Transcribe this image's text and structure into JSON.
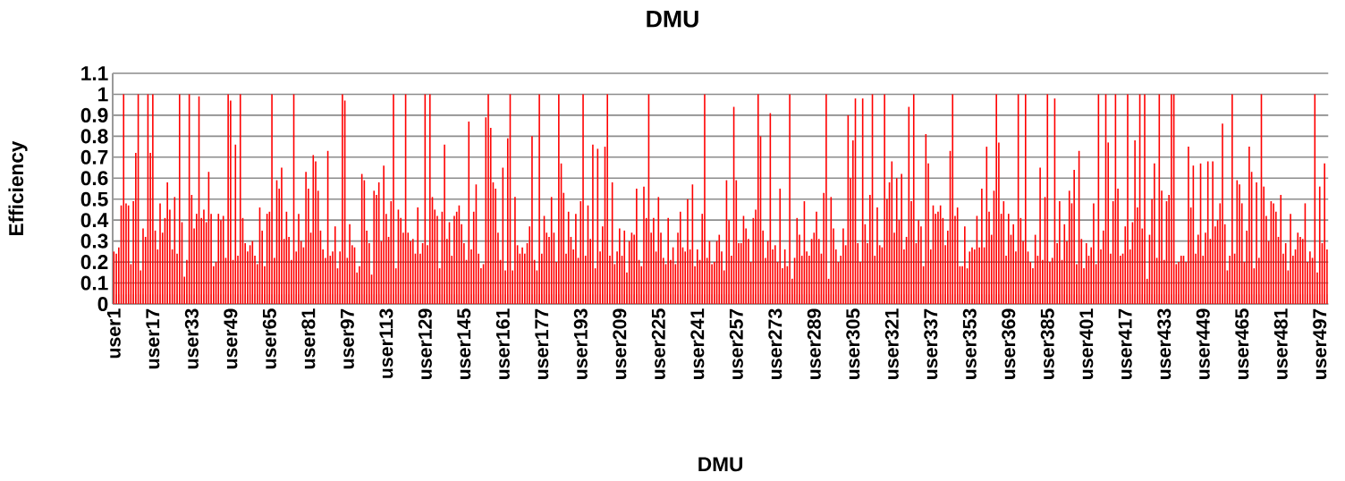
{
  "chart_data": {
    "type": "bar",
    "title": "DMU",
    "xlabel": "DMU",
    "ylabel": "Efficiency",
    "color": "#ff0000",
    "grid": "y",
    "ylim": [
      0,
      1.1
    ],
    "yticks": [
      0,
      0.1,
      0.2,
      0.3,
      0.4,
      0.5,
      0.6,
      0.7,
      0.8,
      0.9,
      1,
      1.1
    ],
    "categories": [
      "user1",
      null,
      null,
      null,
      null,
      null,
      null,
      null,
      null,
      null,
      null,
      null,
      null,
      null,
      null,
      null,
      "user17",
      null,
      null,
      null,
      null,
      null,
      null,
      null,
      null,
      null,
      null,
      null,
      null,
      null,
      null,
      null,
      "user33",
      null,
      null,
      null,
      null,
      null,
      null,
      null,
      null,
      null,
      null,
      null,
      null,
      null,
      null,
      null,
      "user49",
      null,
      null,
      null,
      null,
      null,
      null,
      null,
      null,
      null,
      null,
      null,
      null,
      null,
      null,
      null,
      "user65",
      null,
      null,
      null,
      null,
      null,
      null,
      null,
      null,
      null,
      null,
      null,
      null,
      null,
      null,
      null,
      "user81",
      null,
      null,
      null,
      null,
      null,
      null,
      null,
      null,
      null,
      null,
      null,
      null,
      null,
      null,
      null,
      "user97",
      null,
      null,
      null,
      null,
      null,
      null,
      null,
      null,
      null,
      null,
      null,
      null,
      null,
      null,
      null,
      "user113",
      null,
      null,
      null,
      null,
      null,
      null,
      null,
      null,
      null,
      null,
      null,
      null,
      null,
      null,
      null,
      "user129",
      null,
      null,
      null,
      null,
      null,
      null,
      null,
      null,
      null,
      null,
      null,
      null,
      null,
      null,
      null,
      "user145",
      null,
      null,
      null,
      null,
      null,
      null,
      null,
      null,
      null,
      null,
      null,
      null,
      null,
      null,
      null,
      "user161",
      null,
      null,
      null,
      null,
      null,
      null,
      null,
      null,
      null,
      null,
      null,
      null,
      null,
      null,
      null,
      "user177",
      null,
      null,
      null,
      null,
      null,
      null,
      null,
      null,
      null,
      null,
      null,
      null,
      null,
      null,
      null,
      "user193",
      null,
      null,
      null,
      null,
      null,
      null,
      null,
      null,
      null,
      null,
      null,
      null,
      null,
      null,
      null,
      "user209",
      null,
      null,
      null,
      null,
      null,
      null,
      null,
      null,
      null,
      null,
      null,
      null,
      null,
      null,
      null,
      "user225",
      null,
      null,
      null,
      null,
      null,
      null,
      null,
      null,
      null,
      null,
      null,
      null,
      null,
      null,
      null,
      "user241",
      null,
      null,
      null,
      null,
      null,
      null,
      null,
      null,
      null,
      null,
      null,
      null,
      null,
      null,
      null,
      "user257",
      null,
      null,
      null,
      null,
      null,
      null,
      null,
      null,
      null,
      null,
      null,
      null,
      null,
      null,
      null,
      "user273",
      null,
      null,
      null,
      null,
      null,
      null,
      null,
      null,
      null,
      null,
      null,
      null,
      null,
      null,
      null,
      "user289",
      null,
      null,
      null,
      null,
      null,
      null,
      null,
      null,
      null,
      null,
      null,
      null,
      null,
      null,
      null,
      "user305",
      null,
      null,
      null,
      null,
      null,
      null,
      null,
      null,
      null,
      null,
      null,
      null,
      null,
      null,
      null,
      "user321",
      null,
      null,
      null,
      null,
      null,
      null,
      null,
      null,
      null,
      null,
      null,
      null,
      null,
      null,
      null,
      "user337",
      null,
      null,
      null,
      null,
      null,
      null,
      null,
      null,
      null,
      null,
      null,
      null,
      null,
      null,
      null,
      "user353",
      null,
      null,
      null,
      null,
      null,
      null,
      null,
      null,
      null,
      null,
      null,
      null,
      null,
      null,
      null,
      "user369",
      null,
      null,
      null,
      null,
      null,
      null,
      null,
      null,
      null,
      null,
      null,
      null,
      null,
      null,
      null,
      "user385",
      null,
      null,
      null,
      null,
      null,
      null,
      null,
      null,
      null,
      null,
      null,
      null,
      null,
      null,
      null,
      "user401",
      null,
      null,
      null,
      null,
      null,
      null,
      null,
      null,
      null,
      null,
      null,
      null,
      null,
      null,
      null,
      "user417",
      null,
      null,
      null,
      null,
      null,
      null,
      null,
      null,
      null,
      null,
      null,
      null,
      null,
      null,
      null,
      "user433",
      null,
      null,
      null,
      null,
      null,
      null,
      null,
      null,
      null,
      null,
      null,
      null,
      null,
      null,
      null,
      "user449",
      null,
      null,
      null,
      null,
      null,
      null,
      null,
      null,
      null,
      null,
      null,
      null,
      null,
      null,
      null,
      "user465",
      null,
      null,
      null,
      null,
      null,
      null,
      null,
      null,
      null,
      null,
      null,
      null,
      null,
      null,
      null,
      "user481",
      null,
      null,
      null,
      null,
      null,
      null,
      null,
      null,
      null,
      null,
      null,
      null,
      null,
      null,
      null,
      "user497",
      null,
      null,
      null
    ],
    "values": [
      0.25,
      0.24,
      0.27,
      0.47,
      1,
      0.48,
      0.47,
      0.19,
      0.49,
      0.72,
      1,
      0.16,
      0.36,
      0.32,
      1,
      0.72,
      1,
      0.35,
      0.26,
      0.48,
      0.34,
      0.41,
      0.58,
      0.45,
      0.26,
      0.51,
      0.24,
      1,
      0.39,
      0.13,
      0.21,
      1,
      0.52,
      0.36,
      0.43,
      0.99,
      0.41,
      0.45,
      0.39,
      0.63,
      0.43,
      0.18,
      0.2,
      0.43,
      0.4,
      0.42,
      0.22,
      1,
      0.97,
      0.21,
      0.76,
      0.23,
      1,
      0.41,
      0.29,
      0.25,
      0.28,
      0.3,
      0.23,
      0.19,
      0.46,
      0.35,
      0.18,
      0.43,
      0.44,
      1,
      0.22,
      0.59,
      0.55,
      0.65,
      0.31,
      0.44,
      0.32,
      0.21,
      1,
      0.25,
      0.43,
      0.3,
      0.27,
      0.63,
      0.55,
      0.34,
      0.71,
      0.68,
      0.54,
      0.35,
      0.26,
      0.22,
      0.73,
      0.23,
      0.25,
      0.37,
      0.17,
      0.25,
      1,
      0.97,
      0.22,
      0.38,
      0.28,
      0.27,
      0.15,
      0.18,
      0.62,
      0.59,
      0.35,
      0.29,
      0.14,
      0.54,
      0.52,
      0.58,
      0.3,
      0.66,
      0.43,
      0.32,
      0.49,
      1,
      0.17,
      0.45,
      0.41,
      0.34,
      1,
      0.34,
      0.3,
      0.31,
      0.24,
      0.46,
      0.24,
      0.29,
      1,
      0.28,
      1,
      0.51,
      0.45,
      0.42,
      0.17,
      0.44,
      0.76,
      0.31,
      0.39,
      0.23,
      0.42,
      0.44,
      0.47,
      0.38,
      0.29,
      0.21,
      0.87,
      0.26,
      0.44,
      0.57,
      0.24,
      0.17,
      0.19,
      0.89,
      1,
      0.84,
      0.58,
      0.55,
      0.34,
      0.21,
      0.65,
      0.16,
      0.79,
      1,
      0.16,
      0.51,
      0.28,
      0.24,
      0.27,
      0.24,
      0.29,
      0.37,
      0.8,
      0.21,
      0.16,
      1,
      0.24,
      0.42,
      0.34,
      0.32,
      0.51,
      0.34,
      0.2,
      1,
      0.67,
      0.53,
      0.24,
      0.44,
      0.32,
      0.26,
      0.43,
      0.22,
      0.49,
      1,
      0.23,
      0.47,
      0.31,
      0.76,
      0.17,
      0.74,
      0.25,
      0.37,
      0.75,
      1,
      0.23,
      0.58,
      0.19,
      0.25,
      0.36,
      0.23,
      0.35,
      0.15,
      0.3,
      0.34,
      0.33,
      0.55,
      0.21,
      0.18,
      0.56,
      0.41,
      1,
      0.34,
      0.41,
      0.25,
      0.51,
      0.34,
      0.22,
      0.19,
      0.41,
      0.21,
      0.27,
      0.19,
      0.34,
      0.44,
      0.27,
      0.25,
      0.5,
      0.26,
      0.57,
      0.18,
      0.26,
      0.21,
      0.43,
      1,
      0.22,
      0.3,
      0.19,
      0.2,
      0.3,
      0.33,
      0.25,
      0.16,
      0.59,
      0.4,
      0.23,
      0.94,
      0.59,
      0.29,
      0.29,
      0.42,
      0.36,
      0.31,
      0.2,
      0.41,
      0.45,
      1,
      0.8,
      0.35,
      0.22,
      0.3,
      0.91,
      0.26,
      0.28,
      0.2,
      0.55,
      0.17,
      0.26,
      0.18,
      1,
      0.12,
      0.22,
      0.41,
      0.33,
      0.23,
      0.49,
      0.25,
      0.23,
      0.31,
      0.34,
      0.44,
      0.31,
      0.24,
      0.53,
      1,
      0.12,
      0.51,
      0.36,
      0.26,
      0.2,
      0.23,
      0.36,
      0.28,
      0.9,
      0.6,
      0.78,
      0.98,
      0.29,
      0.2,
      0.98,
      0.38,
      0.29,
      0.52,
      1,
      0.23,
      0.46,
      0.28,
      0.27,
      1,
      0.5,
      0.58,
      0.68,
      0.34,
      0.6,
      0.4,
      0.62,
      0.26,
      0.32,
      0.94,
      0.49,
      1,
      0.29,
      0.4,
      0.37,
      0.18,
      0.81,
      0.67,
      0.26,
      0.47,
      0.43,
      0.44,
      0.47,
      0.41,
      0.28,
      0.35,
      0.73,
      1,
      0.42,
      0.46,
      0.18,
      0.18,
      0.37,
      0.17,
      0.25,
      0.27,
      0.26,
      0.42,
      0.27,
      0.55,
      0.27,
      0.75,
      0.44,
      0.33,
      0.54,
      1,
      0.77,
      0.43,
      0.49,
      0.23,
      0.43,
      0.33,
      0.38,
      0.25,
      1,
      0.41,
      0.3,
      1,
      0.25,
      0.2,
      0.17,
      0.33,
      0.23,
      0.65,
      0.21,
      0.51,
      1,
      0.2,
      0.22,
      0.98,
      0.29,
      0.49,
      0.21,
      0.38,
      0.3,
      0.54,
      0.48,
      0.64,
      0.19,
      0.73,
      0.31,
      0.17,
      0.29,
      0.23,
      0.27,
      0.48,
      0.19,
      1,
      0.26,
      0.35,
      1,
      0.77,
      0.24,
      0.49,
      1,
      0.55,
      0.23,
      0.24,
      0.37,
      1,
      0.26,
      0.39,
      0.78,
      0.46,
      1,
      0.36,
      1,
      0.12,
      0.33,
      0.5,
      0.67,
      0.22,
      1,
      0.54,
      0.21,
      0.49,
      0.52,
      1,
      1,
      0.19,
      0.2,
      0.23,
      0.23,
      0.2,
      0.75,
      0.46,
      0.66,
      0.24,
      0.33,
      0.67,
      0.23,
      0.34,
      0.68,
      0.31,
      0.68,
      0.37,
      0.4,
      0.48,
      0.86,
      0.38,
      0.16,
      0.23,
      1,
      0.24,
      0.59,
      0.57,
      0.48,
      0.2,
      0.35,
      0.75,
      0.63,
      0.17,
      0.58,
      0.22,
      1,
      0.56,
      0.42,
      0.3,
      0.49,
      0.48,
      0.44,
      0.32,
      0.52,
      0.24,
      0.29,
      0.16,
      0.43,
      0.23,
      0.26,
      0.34,
      0.32,
      0.31,
      0.48,
      0.2,
      0.25,
      0.22,
      1,
      0.15,
      0.56,
      0.29,
      0.67,
      0.26
    ]
  }
}
